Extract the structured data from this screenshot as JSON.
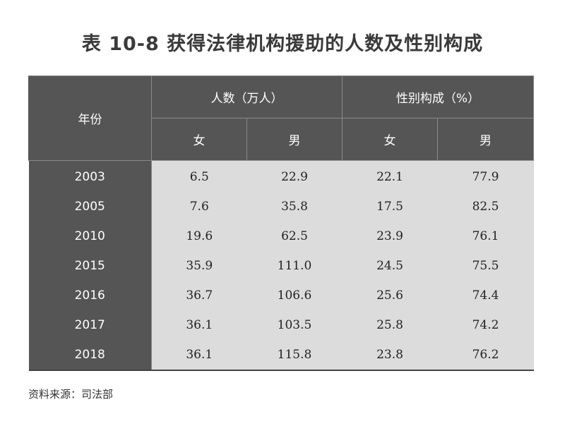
{
  "title": "表 10-8 获得法律机构援助的人数及性别构成",
  "table": {
    "header_year": "年份",
    "header_group1": "人数（万人）",
    "header_group2": "性别构成（%）",
    "sub_headers": [
      "女",
      "男",
      "女",
      "男"
    ],
    "rows": [
      {
        "year": "2003",
        "cells": [
          "6.5",
          "22.9",
          "22.1",
          "77.9"
        ]
      },
      {
        "year": "2005",
        "cells": [
          "7.6",
          "35.8",
          "17.5",
          "82.5"
        ]
      },
      {
        "year": "2010",
        "cells": [
          "19.6",
          "62.5",
          "23.9",
          "76.1"
        ]
      },
      {
        "year": "2015",
        "cells": [
          "35.9",
          "111.0",
          "24.5",
          "75.5"
        ]
      },
      {
        "year": "2016",
        "cells": [
          "36.7",
          "106.6",
          "25.6",
          "74.4"
        ]
      },
      {
        "year": "2017",
        "cells": [
          "36.1",
          "103.5",
          "25.8",
          "74.2"
        ]
      },
      {
        "year": "2018",
        "cells": [
          "36.1",
          "115.8",
          "23.8",
          "76.2"
        ]
      }
    ]
  },
  "source": "资料来源：司法部",
  "colors": {
    "header_bg": "#555555",
    "cell_bg": "#dcdcdc",
    "header_text": "#ffffff"
  }
}
